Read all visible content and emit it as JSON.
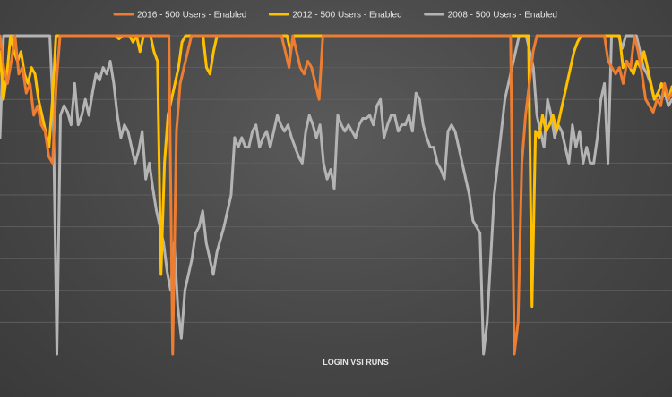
{
  "chart_data": {
    "type": "line",
    "title": "",
    "xlabel": "LOGIN VSI RUNS",
    "ylabel": "",
    "legend_position": "top-center",
    "grid": true,
    "ylim": [
      0,
      100
    ],
    "series": [
      {
        "name": "2016 - 500 Users - Enabled",
        "color": "#ed7d31",
        "values": [
          100,
          90,
          85,
          92,
          100,
          88,
          90,
          82,
          85,
          75,
          78,
          72,
          70,
          62,
          60,
          85,
          100,
          100,
          100,
          100,
          100,
          100,
          100,
          100,
          100,
          100,
          100,
          100,
          100,
          100,
          100,
          100,
          100,
          100,
          100,
          100,
          100,
          100,
          100,
          100,
          100,
          100,
          100,
          100,
          100,
          100,
          0,
          70,
          85,
          90,
          95,
          100,
          100,
          100,
          100,
          100,
          100,
          100,
          100,
          100,
          100,
          100,
          100,
          100,
          100,
          100,
          100,
          100,
          100,
          100,
          100,
          100,
          100,
          100,
          100,
          100,
          95,
          90,
          100,
          95,
          90,
          88,
          92,
          90,
          85,
          80,
          100,
          100,
          100,
          100,
          100,
          100,
          100,
          100,
          100,
          100,
          100,
          100,
          100,
          100,
          100,
          100,
          100,
          100,
          100,
          100,
          100,
          100,
          100,
          100,
          100,
          100,
          100,
          100,
          100,
          100,
          100,
          100,
          100,
          100,
          100,
          100,
          100,
          100,
          100,
          100,
          100,
          100,
          100,
          100,
          100,
          100,
          100,
          100,
          100,
          100,
          100,
          0,
          10,
          60,
          75,
          85,
          95,
          100,
          100,
          100,
          100,
          100,
          100,
          100,
          100,
          100,
          100,
          100,
          100,
          100,
          100,
          100,
          100,
          100,
          100,
          100,
          92,
          90,
          88,
          90,
          85,
          92,
          90,
          100,
          95,
          88,
          80,
          78,
          76,
          80,
          78,
          85,
          80,
          82
        ]
      },
      {
        "name": "2012 - 500 Users - Enabled",
        "color": "#ffc000",
        "values": [
          95,
          80,
          88,
          100,
          95,
          92,
          95,
          88,
          85,
          90,
          88,
          80,
          75,
          70,
          65,
          80,
          100,
          100,
          100,
          100,
          100,
          100,
          100,
          100,
          100,
          100,
          100,
          100,
          100,
          100,
          100,
          100,
          100,
          100,
          99,
          100,
          100,
          100,
          98,
          100,
          95,
          100,
          100,
          100,
          95,
          92,
          25,
          60,
          75,
          80,
          85,
          90,
          98,
          100,
          100,
          100,
          100,
          100,
          100,
          90,
          88,
          95,
          100,
          100,
          100,
          100,
          100,
          100,
          100,
          100,
          100,
          100,
          100,
          100,
          100,
          100,
          100,
          100,
          100,
          100,
          100,
          100,
          100,
          95,
          100,
          100,
          100,
          100,
          100,
          100,
          100,
          100,
          100,
          100,
          100,
          100,
          100,
          100,
          100,
          100,
          100,
          100,
          100,
          100,
          100,
          100,
          100,
          100,
          100,
          100,
          100,
          100,
          100,
          100,
          100,
          100,
          100,
          100,
          100,
          100,
          100,
          100,
          100,
          100,
          100,
          100,
          100,
          100,
          100,
          100,
          100,
          100,
          100,
          100,
          100,
          100,
          100,
          100,
          100,
          100,
          100,
          100,
          100,
          100,
          100,
          100,
          100,
          100,
          100,
          100,
          100,
          100,
          15,
          70,
          68,
          75,
          70,
          72,
          75,
          70,
          75,
          80,
          85,
          90,
          95,
          98,
          100,
          100,
          100,
          100,
          100,
          100,
          100,
          100,
          100,
          100,
          100,
          100,
          90,
          92,
          90,
          88,
          92,
          90,
          95,
          90,
          85,
          80,
          82,
          85,
          82,
          80,
          84
        ]
      },
      {
        "name": "2008 - 500 Users - Enabled",
        "color": "#b4b4b4",
        "values": [
          68,
          100,
          100,
          100,
          100,
          100,
          100,
          100,
          100,
          100,
          100,
          100,
          100,
          100,
          100,
          75,
          0,
          75,
          78,
          76,
          72,
          85,
          72,
          75,
          80,
          75,
          82,
          88,
          86,
          90,
          88,
          92,
          85,
          75,
          68,
          72,
          70,
          65,
          60,
          64,
          70,
          55,
          60,
          52,
          45,
          40,
          35,
          26,
          20,
          35,
          15,
          5,
          20,
          25,
          30,
          38,
          40,
          45,
          35,
          30,
          25,
          32,
          36,
          40,
          45,
          50,
          68,
          65,
          68,
          65,
          65,
          70,
          72,
          65,
          68,
          70,
          65,
          70,
          75,
          72,
          70,
          72,
          68,
          65,
          62,
          60,
          70,
          75,
          72,
          68,
          72,
          60,
          55,
          58,
          52,
          75,
          72,
          70,
          72,
          70,
          68,
          72,
          74,
          74,
          75,
          72,
          78,
          80,
          68,
          72,
          75,
          75,
          70,
          72,
          72,
          75,
          70,
          82,
          80,
          72,
          68,
          65,
          65,
          60,
          58,
          55,
          70,
          72,
          70,
          65,
          60,
          55,
          50,
          42,
          40,
          38,
          0,
          10,
          30,
          50,
          60,
          70,
          80,
          85,
          90,
          95,
          100,
          100,
          100,
          95,
          90,
          75,
          70,
          65,
          80,
          75,
          68,
          72,
          70,
          65,
          60,
          72,
          65,
          70,
          60,
          65,
          60,
          60,
          68,
          80,
          85,
          60,
          100,
          100,
          100,
          96,
          100,
          100,
          100,
          100,
          95,
          90,
          88,
          85,
          80,
          82,
          80,
          82,
          78,
          80
        ]
      }
    ]
  }
}
